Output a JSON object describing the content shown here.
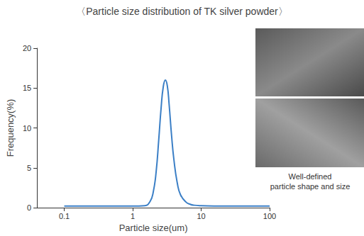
{
  "chart_data": {
    "type": "line",
    "title": "〈Particle size distribution of TK silver powder〉",
    "x_label": "Particle size(um)",
    "y_label": "Frequency(%)",
    "annotation": "Well-defined\nparticle shape and size",
    "x": [
      0.1,
      0.5,
      1,
      1.5,
      1.8,
      2.0,
      2.2,
      2.4,
      2.6,
      2.8,
      3.0,
      3.2,
      3.4,
      3.7,
      4.0,
      4.5,
      5,
      6,
      7,
      8,
      10,
      20,
      50,
      100
    ],
    "values": [
      0.2,
      0.2,
      0.2,
      0.25,
      0.8,
      2.0,
      4.5,
      8.5,
      12.5,
      15.2,
      16.0,
      15.3,
      13.0,
      9.0,
      6.0,
      3.0,
      1.6,
      0.7,
      0.4,
      0.3,
      0.25,
      0.2,
      0.2,
      0.2
    ],
    "color": "#3b7fc6",
    "xlim": [
      0.04,
      100
    ],
    "ylim": [
      0,
      20
    ],
    "xticks": [
      0.1,
      1,
      10,
      100
    ],
    "yticks": [
      0,
      5,
      10,
      15,
      20
    ],
    "log": "x",
    "grid": false
  }
}
